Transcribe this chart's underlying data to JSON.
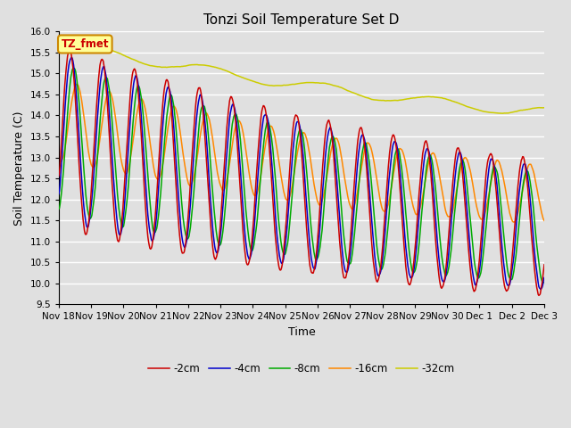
{
  "title": "Tonzi Soil Temperature Set D",
  "xlabel": "Time",
  "ylabel": "Soil Temperature (C)",
  "ylim": [
    9.5,
    16.0
  ],
  "yticks": [
    9.5,
    10.0,
    10.5,
    11.0,
    11.5,
    12.0,
    12.5,
    13.0,
    13.5,
    14.0,
    14.5,
    15.0,
    15.5,
    16.0
  ],
  "xtick_labels": [
    "Nov 18",
    "Nov 19",
    "Nov 20",
    "Nov 21",
    "Nov 22",
    "Nov 23",
    "Nov 24",
    "Nov 25",
    "Nov 26",
    "Nov 27",
    "Nov 28",
    "Nov 29",
    "Nov 30",
    "Dec 1",
    "Dec 2",
    "Dec 3"
  ],
  "colors": {
    "-2cm": "#cc0000",
    "-4cm": "#0000cc",
    "-8cm": "#00aa00",
    "-16cm": "#ff8800",
    "-32cm": "#cccc00"
  },
  "annotation_text": "TZ_fmet",
  "annotation_color": "#cc0000",
  "annotation_bg": "#ffff99",
  "annotation_border": "#cc8800",
  "bg_color": "#e0e0e0",
  "plot_bg_color": "#e0e0e0",
  "grid_color": "#ffffff",
  "n_points": 720,
  "n_days": 15
}
